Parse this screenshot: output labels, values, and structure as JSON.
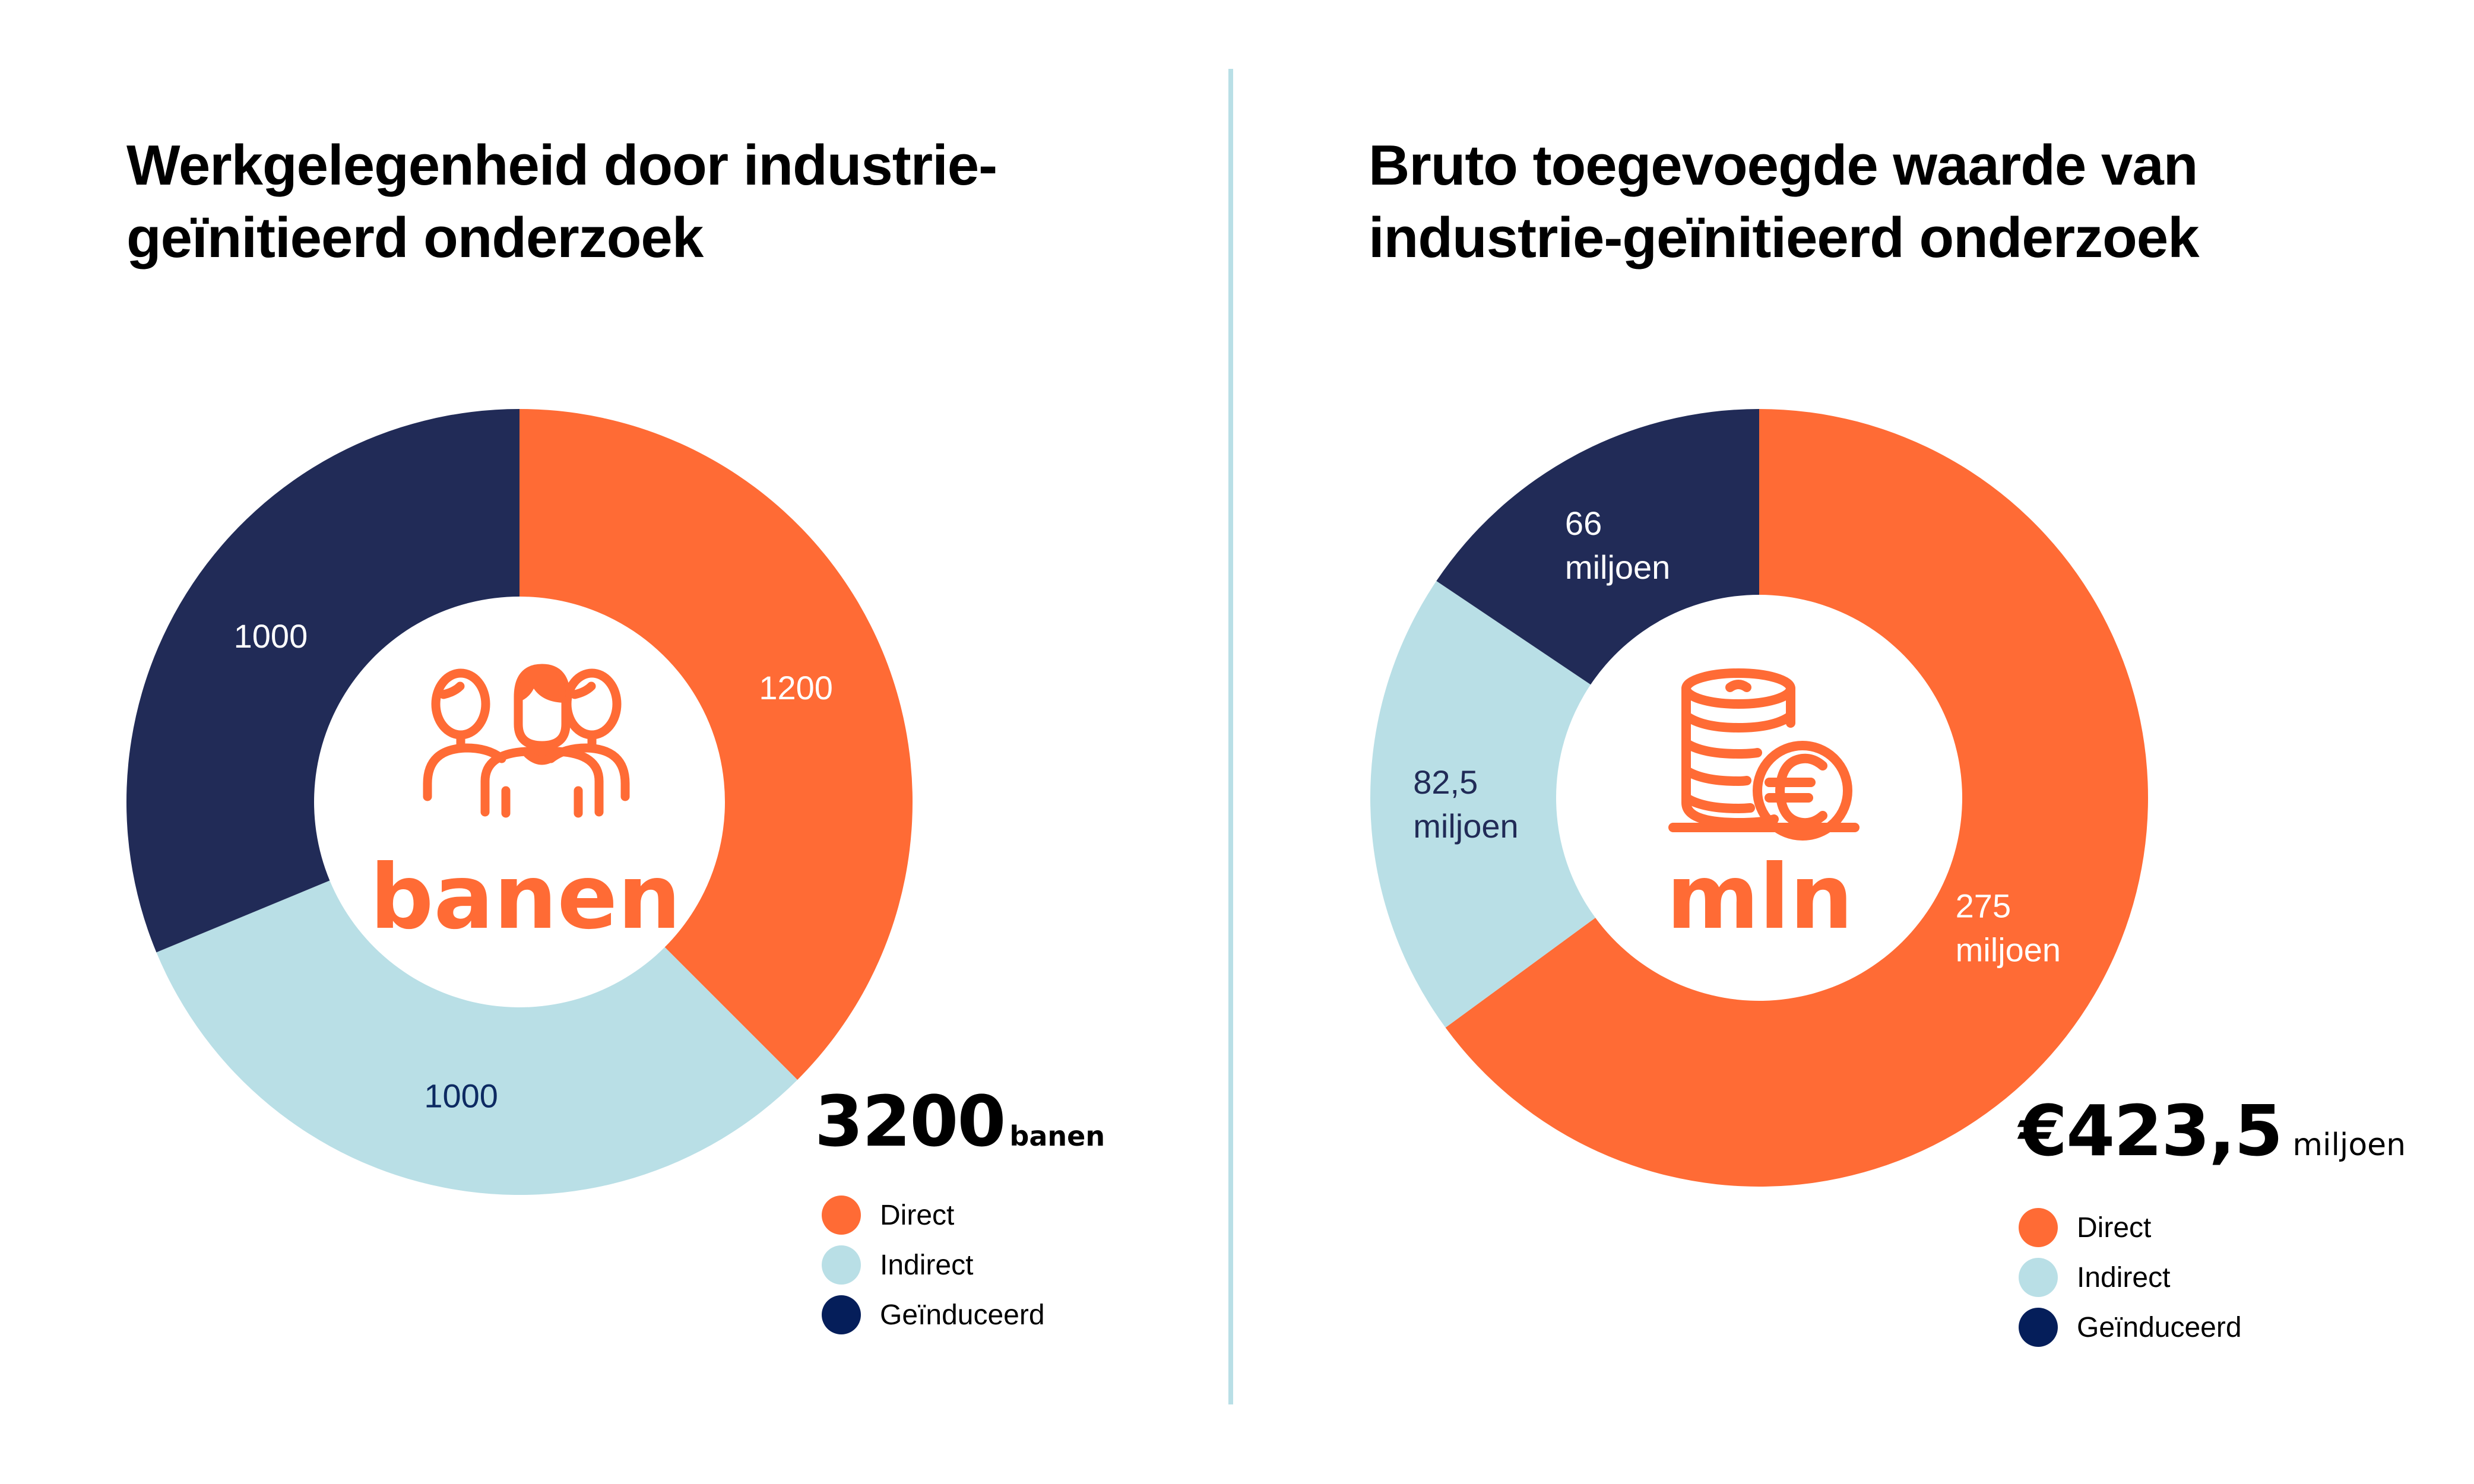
{
  "layout": {
    "panels": 2,
    "divider": true
  },
  "colors": {
    "direct": "#ff6b35",
    "indirect": "#b9dfe6",
    "induced": "#212b57",
    "legend_induced": "#051e5a",
    "label_on_light": "#0d2a62",
    "accent": "#ff6b35",
    "divider": "#b9dfe6"
  },
  "left": {
    "title_lines": [
      "Werkgelegenheid door industrie-",
      "geïnitieerd onderzoek"
    ],
    "center_icon": "people-group-icon",
    "center_word": "banen",
    "total_value": "3200",
    "total_unit": "banen",
    "legend": [
      "Direct",
      "Indirect",
      "Geïnduceerd"
    ]
  },
  "right": {
    "title_lines": [
      "Bruto toegevoegde waarde van",
      "industrie-geïnitieerd onderzoek"
    ],
    "center_icon": "euro-coins-icon",
    "center_word": "mln",
    "total_value": "€423,5",
    "total_unit": "miljoen",
    "legend": [
      "Direct",
      "Indirect",
      "Geïnduceerd"
    ]
  },
  "chart_data": [
    {
      "type": "pie",
      "variant": "donut",
      "title": "Werkgelegenheid door industrie-geïnitieerd onderzoek",
      "categories": [
        "Direct",
        "Indirect",
        "Geïnduceerd"
      ],
      "values": [
        1200,
        1000,
        1000
      ],
      "labels": [
        [
          "1200"
        ],
        [
          "1000"
        ],
        [
          "1000"
        ]
      ],
      "label_colors": [
        "#ffffff",
        "#0d2a62",
        "#ffffff"
      ],
      "colors": [
        "#ff6b35",
        "#b9dfe6",
        "#212b57"
      ],
      "total": 3200,
      "unit": "banen",
      "start": "top",
      "direction": "clockwise",
      "legend_position": "bottom-right"
    },
    {
      "type": "pie",
      "variant": "donut",
      "title": "Bruto toegevoegde waarde van industrie-geïnitieerd onderzoek",
      "categories": [
        "Direct",
        "Indirect",
        "Geïnduceerd"
      ],
      "values": [
        275,
        82.5,
        66
      ],
      "labels": [
        [
          "275",
          "miljoen"
        ],
        [
          "82,5",
          "miljoen"
        ],
        [
          "66",
          "miljoen"
        ]
      ],
      "label_colors": [
        "#ffffff",
        "#212b57",
        "#ffffff"
      ],
      "colors": [
        "#ff6b35",
        "#b9dfe6",
        "#212b57"
      ],
      "total": 423.5,
      "unit": "miljoen euro",
      "start": "top",
      "direction": "clockwise",
      "legend_position": "bottom-right"
    }
  ]
}
